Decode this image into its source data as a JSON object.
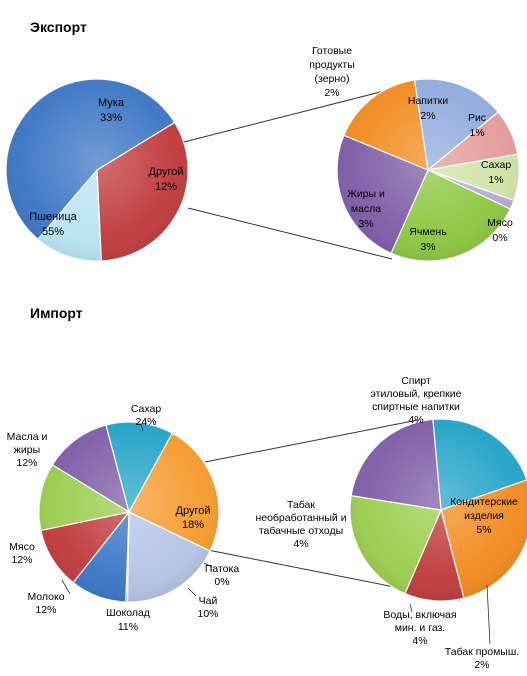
{
  "chart_data": [
    {
      "type": "pie",
      "title": "Экспорт",
      "role": "main",
      "slices": [
        {
          "label": "Мука",
          "value": 33,
          "display": "33%",
          "color": "#c0393b"
        },
        {
          "label": "Другой",
          "value": 12,
          "display": "12%",
          "color": "#b9e4f3"
        },
        {
          "label": "Пшеница",
          "value": 55,
          "display": "55%",
          "color": "#3a75c4"
        }
      ]
    },
    {
      "type": "pie",
      "title": "",
      "role": "breakdown-of-Другой",
      "slices": [
        {
          "label": "Напитки",
          "value": 2,
          "display": "2%",
          "color": "#8faadc"
        },
        {
          "label": "Рис",
          "value": 1,
          "display": "1%",
          "color": "#e49a9a"
        },
        {
          "label": "Сахар",
          "value": 1,
          "display": "1%",
          "color": "#cfe3a5"
        },
        {
          "label": "Мясо",
          "value": 0.2,
          "display": "0%",
          "color": "#b7a8d3"
        },
        {
          "label": "Ячмень",
          "value": 3,
          "display": "3%",
          "color": "#8cc63f"
        },
        {
          "label": "Жиры и масла",
          "value": 3,
          "display": "3%",
          "color": "#7d5ba6"
        },
        {
          "label": "Готовые продукты (зерно)",
          "value": 2,
          "display": "2%",
          "color": "#f28a1c"
        }
      ]
    },
    {
      "type": "pie",
      "title": "Импорт",
      "role": "main",
      "slices": [
        {
          "label": "Сахар",
          "value": 24,
          "display": "24%",
          "color": "#f59a2c"
        },
        {
          "label": "Другой",
          "value": 18,
          "display": "18%",
          "color": "#b4c3e6"
        },
        {
          "label": "Патока",
          "value": 0.3,
          "display": "0%",
          "color": "#5a9fd4"
        },
        {
          "label": "Чай",
          "value": 10,
          "display": "10%",
          "color": "#3a75c4"
        },
        {
          "label": "Шоколад",
          "value": 11,
          "display": "11%",
          "color": "#c0393b"
        },
        {
          "label": "Молоко",
          "value": 12,
          "display": "12%",
          "color": "#9acd4c"
        },
        {
          "label": "Мясо",
          "value": 12,
          "display": "12%",
          "color": "#7d5ba6"
        },
        {
          "label": "Масла и жиры",
          "value": 12,
          "display": "12%",
          "color": "#21a3c8"
        }
      ]
    },
    {
      "type": "pie",
      "title": "",
      "role": "breakdown-of-Другой",
      "slices": [
        {
          "label": "Спирт этиловый, крепкие спиртные напитки",
          "value": 4,
          "display": "4%",
          "color": "#21a3c8"
        },
        {
          "label": "Кондитерские изделия",
          "value": 5,
          "display": "5%",
          "color": "#f28a1c"
        },
        {
          "label": "Табак промыш.",
          "value": 2,
          "display": "2%",
          "color": "#c0393b"
        },
        {
          "label": "Воды, включая мин. и газ.",
          "value": 4,
          "display": "4%",
          "color": "#9acd4c"
        },
        {
          "label": "Табак необработанный и табачные отходы",
          "value": 4,
          "display": "4%",
          "color": "#7d5ba6"
        }
      ]
    }
  ],
  "text": {
    "export_title": "Экспорт",
    "import_title": "Импорт",
    "e_muka": "Мука",
    "e_muka_v": "33%",
    "e_drugoi": "Другой",
    "e_drugoi_v": "12%",
    "e_pshen": "Пшеница",
    "e_pshen_v": "55%",
    "e_got1": "Готовые",
    "e_got2": "продукты",
    "e_got3": "(зерно)",
    "e_got_v": "2%",
    "e_nap": "Напитки",
    "e_nap_v": "2%",
    "e_ris": "Рис",
    "e_ris_v": "1%",
    "e_sah": "Сахар",
    "e_sah_v": "1%",
    "e_myaso": "Мясо",
    "e_myaso_v": "0%",
    "e_yach": "Ячмень",
    "e_yach_v": "3%",
    "e_zhir1": "Жиры и",
    "e_zhir2": "масла",
    "e_zhir_v": "3%",
    "i_sah": "Сахар",
    "i_sah_v": "24%",
    "i_mas1": "Масла и",
    "i_mas2": "жиры",
    "i_mas_v": "12%",
    "i_drugoi": "Другой",
    "i_drugoi_v": "18%",
    "i_myaso": "Мясо",
    "i_myaso_v": "12%",
    "i_pat": "Патока",
    "i_pat_v": "0%",
    "i_chai": "Чай",
    "i_chai_v": "10%",
    "i_shok": "Шоколад",
    "i_shok_v": "11%",
    "i_mol": "Молоко",
    "i_mol_v": "12%",
    "i_sp1": "Спирт",
    "i_sp2": "этиловый, крепкие",
    "i_sp3": "спиртные  напитки",
    "i_sp_v": "4%",
    "i_kon1": "Кондитерские",
    "i_kon2": "изделия",
    "i_kon_v": "5%",
    "i_tab1": "Табак",
    "i_tab2": "необработанный и",
    "i_tab3": "табачные отходы",
    "i_tab_v": "4%",
    "i_vod1": "Воды, включая",
    "i_vod2": "мин.  и  газ.",
    "i_vod_v": "4%",
    "i_tp1": "Табак  промыш.",
    "i_tp2": "2%"
  }
}
